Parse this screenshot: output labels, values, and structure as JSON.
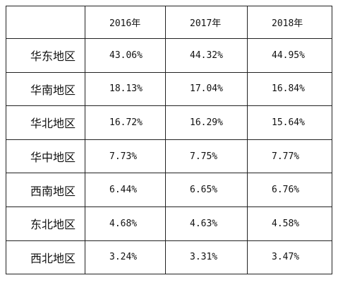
{
  "table": {
    "columns": [
      "2016年",
      "2017年",
      "2018年"
    ],
    "rows": [
      {
        "label": "华东地区",
        "cells": [
          "43.06%",
          "44.32%",
          "44.95%"
        ]
      },
      {
        "label": "华南地区",
        "cells": [
          "18.13%",
          "17.04%",
          "16.84%"
        ]
      },
      {
        "label": "华北地区",
        "cells": [
          "16.72%",
          "16.29%",
          "15.64%"
        ]
      },
      {
        "label": "华中地区",
        "cells": [
          "7.73%",
          "7.75%",
          "7.77%"
        ]
      },
      {
        "label": "西南地区",
        "cells": [
          "6.44%",
          "6.65%",
          "6.76%"
        ]
      },
      {
        "label": "东北地区",
        "cells": [
          "4.68%",
          "4.63%",
          "4.58%"
        ]
      },
      {
        "label": "西北地区",
        "cells": [
          "3.24%",
          "3.31%",
          "3.47%"
        ]
      }
    ]
  }
}
